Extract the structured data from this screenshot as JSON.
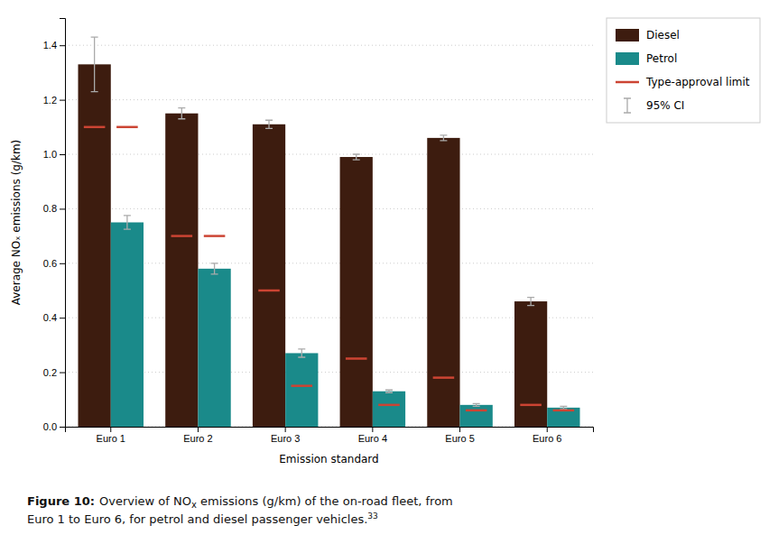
{
  "chart_data": {
    "type": "bar",
    "categories": [
      "Euro 1",
      "Euro 2",
      "Euro 3",
      "Euro 4",
      "Euro 5",
      "Euro 6"
    ],
    "series": [
      {
        "name": "Diesel",
        "color": "#3d1c0f",
        "values": [
          1.33,
          1.15,
          1.11,
          0.99,
          1.06,
          0.46
        ],
        "ci": [
          0.1,
          0.02,
          0.015,
          0.01,
          0.01,
          0.015
        ],
        "type_approval_limit": [
          1.1,
          0.7,
          0.5,
          0.25,
          0.18,
          0.08
        ]
      },
      {
        "name": "Petrol",
        "color": "#1a8a8a",
        "values": [
          0.75,
          0.58,
          0.27,
          0.13,
          0.08,
          0.07
        ],
        "ci": [
          0.025,
          0.02,
          0.015,
          0.005,
          0.005,
          0.005
        ],
        "type_approval_limit": [
          1.1,
          0.7,
          0.15,
          0.08,
          0.06,
          0.06
        ]
      }
    ],
    "type_approval_label": "Type-approval limit",
    "type_approval_color": "#cc4433",
    "ci_label": "95% CI",
    "ci_color": "#aaaaaa",
    "ylabel": "Average NOₓ emissions (g/km)",
    "xlabel": "Emission standard",
    "ylim": [
      0.0,
      1.5
    ],
    "yticks": [
      {
        "value": 0.0,
        "label": "0.0"
      },
      0.2,
      0.4,
      0.6,
      0.8,
      {
        "value": 1.0,
        "label": "1.0"
      },
      1.2,
      1.4
    ],
    "grid": true,
    "legend": "right",
    "annotations": [
      "Figure 10:",
      "Overview of NO",
      "x",
      " emissions (g/km) of the on-road fleet, from",
      "Euro 1 to Euro 6, for petrol and diesel passenger vehicles.",
      "33"
    ]
  }
}
